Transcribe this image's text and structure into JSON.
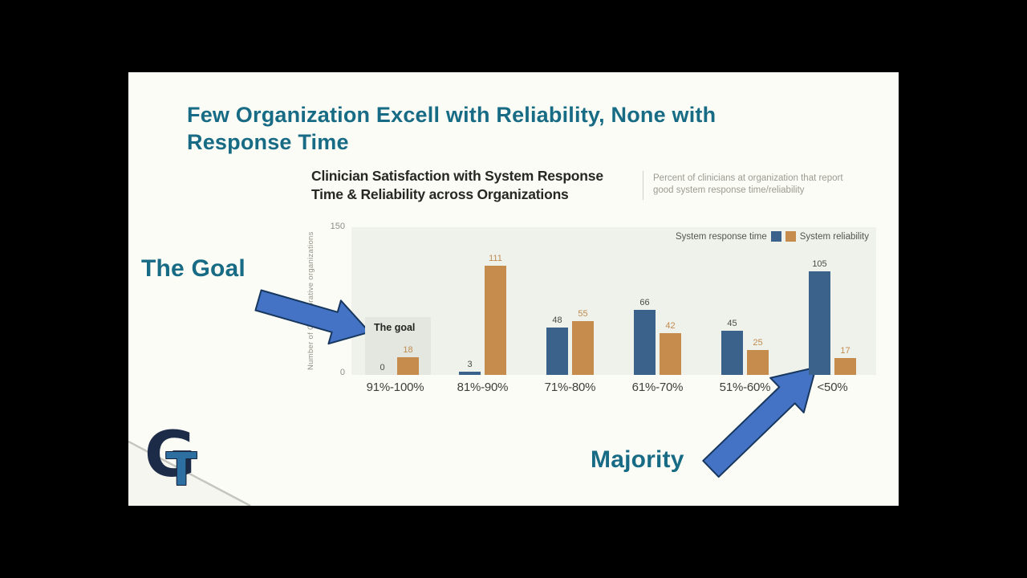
{
  "slide": {
    "title": "Few Organization Excell with Reliability, None with Response Time"
  },
  "annotations": {
    "goal": "The Goal",
    "majority": "Majority"
  },
  "chart": {
    "title": "Clinician Satisfaction with System Response Time & Reliability across Organizations",
    "note": "Percent of clinicians at organization that report good system response time/reliability",
    "y_axis_label": "Number of Collaborative organizations",
    "y_ticks": [
      "150",
      "0"
    ],
    "goal_box_label": "The goal"
  },
  "chart_data": {
    "type": "bar",
    "title": "Clinician Satisfaction with System Response Time & Reliability across Organizations",
    "categories": [
      "91%-100%",
      "81%-90%",
      "71%-80%",
      "61%-70%",
      "51%-60%",
      "<50%"
    ],
    "series": [
      {
        "name": "System response time",
        "values": [
          0,
          3,
          48,
          66,
          45,
          105
        ],
        "color": "#3A628A",
        "label_color": "#4A4A44"
      },
      {
        "name": "System reliability",
        "values": [
          18,
          111,
          55,
          42,
          25,
          17
        ],
        "color": "#C58C4E",
        "label_color": "#C08B50"
      }
    ],
    "ylabel": "Number of Collaborative organizations",
    "ylim": [
      0,
      150
    ],
    "grid": false,
    "legend_position": "top-right",
    "annotations": [
      "The goal",
      "The Goal",
      "Majority"
    ]
  },
  "colors": {
    "accent_teal": "#176B85",
    "arrow_fill": "#4472C4",
    "arrow_outline": "#17375E",
    "bar_blue": "#3A628A",
    "bar_orange": "#C58C4E",
    "slide_bg": "#FCFCF6",
    "plot_bg": "#EFF1EB",
    "goal_box_bg": "#E4E6E0"
  },
  "logo": {
    "letter_g": "G",
    "letter_t": "T"
  }
}
